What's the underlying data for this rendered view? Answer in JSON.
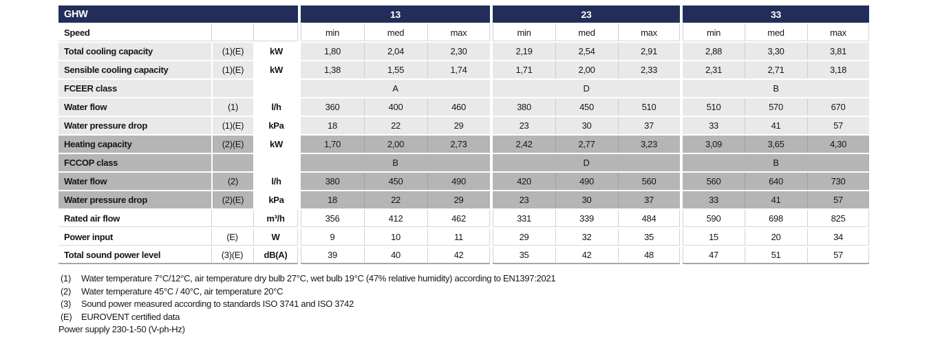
{
  "table": {
    "title": "GHW",
    "models": [
      "13",
      "23",
      "33"
    ],
    "speed_label": "Speed",
    "speed_cols": [
      "min",
      "med",
      "max"
    ],
    "rows": [
      {
        "label": "Total cooling capacity",
        "ref": "(1)(E)",
        "unit": "kW",
        "shade": "light",
        "merged": false,
        "values": [
          "1,80",
          "2,04",
          "2,30",
          "2,19",
          "2,54",
          "2,91",
          "2,88",
          "3,30",
          "3,81"
        ]
      },
      {
        "label": "Sensible cooling capacity",
        "ref": "(1)(E)",
        "unit": "kW",
        "shade": "light",
        "merged": false,
        "values": [
          "1,38",
          "1,55",
          "1,74",
          "1,71",
          "2,00",
          "2,33",
          "2,31",
          "2,71",
          "3,18"
        ]
      },
      {
        "label": "FCEER class",
        "ref": "",
        "unit": "",
        "shade": "light",
        "merged": true,
        "values": [
          "A",
          "D",
          "B"
        ]
      },
      {
        "label": "Water flow",
        "ref": "(1)",
        "unit": "l/h",
        "shade": "light",
        "merged": false,
        "values": [
          "360",
          "400",
          "460",
          "380",
          "450",
          "510",
          "510",
          "570",
          "670"
        ]
      },
      {
        "label": "Water pressure drop",
        "ref": "(1)(E)",
        "unit": "kPa",
        "shade": "light",
        "merged": false,
        "values": [
          "18",
          "22",
          "29",
          "23",
          "30",
          "37",
          "33",
          "41",
          "57"
        ]
      },
      {
        "label": "Heating capacity",
        "ref": "(2)(E)",
        "unit": "kW",
        "shade": "dark",
        "merged": false,
        "values": [
          "1,70",
          "2,00",
          "2,73",
          "2,42",
          "2,77",
          "3,23",
          "3,09",
          "3,65",
          "4,30"
        ]
      },
      {
        "label": "FCCOP class",
        "ref": "",
        "unit": "",
        "shade": "dark",
        "merged": true,
        "values": [
          "B",
          "D",
          "B"
        ]
      },
      {
        "label": "Water flow",
        "ref": "(2)",
        "unit": "l/h",
        "shade": "dark",
        "merged": false,
        "values": [
          "380",
          "450",
          "490",
          "420",
          "490",
          "560",
          "560",
          "640",
          "730"
        ]
      },
      {
        "label": "Water pressure drop",
        "ref": "(2)(E)",
        "unit": "kPa",
        "shade": "dark",
        "merged": false,
        "values": [
          "18",
          "22",
          "29",
          "23",
          "30",
          "37",
          "33",
          "41",
          "57"
        ]
      },
      {
        "label": "Rated air flow",
        "ref": "",
        "unit": "m³/h",
        "shade": "white",
        "merged": false,
        "values": [
          "356",
          "412",
          "462",
          "331",
          "339",
          "484",
          "590",
          "698",
          "825"
        ]
      },
      {
        "label": "Power input",
        "ref": "(E)",
        "unit": "W",
        "shade": "white",
        "merged": false,
        "values": [
          "9",
          "10",
          "11",
          "29",
          "32",
          "35",
          "15",
          "20",
          "34"
        ]
      },
      {
        "label": "Total sound power level",
        "ref": "(3)(E)",
        "unit": "dB(A)",
        "shade": "white",
        "merged": false,
        "values": [
          "39",
          "40",
          "42",
          "35",
          "42",
          "48",
          "47",
          "51",
          "57"
        ]
      }
    ]
  },
  "footnotes": [
    {
      "mark": "(1)",
      "text": "Water temperature 7°C/12°C, air temperature dry bulb 27°C, wet bulb 19°C (47% relative humidity) according to EN1397:2021"
    },
    {
      "mark": "(2)",
      "text": "Water temperature 45°C / 40°C, air temperature 20°C"
    },
    {
      "mark": "(3)",
      "text": "Sound power measured according to standards ISO 3741 and ISO 3742"
    },
    {
      "mark": "(E)",
      "text": "EUROVENT certified data"
    }
  ],
  "power_supply": "Power supply 230-1-50 (V-ph-Hz)",
  "colors": {
    "header_navy": "#222d5a",
    "row_light": "#e9e9ea",
    "row_dark": "#b5b5b6",
    "grid_line": "#d2d2d2"
  }
}
